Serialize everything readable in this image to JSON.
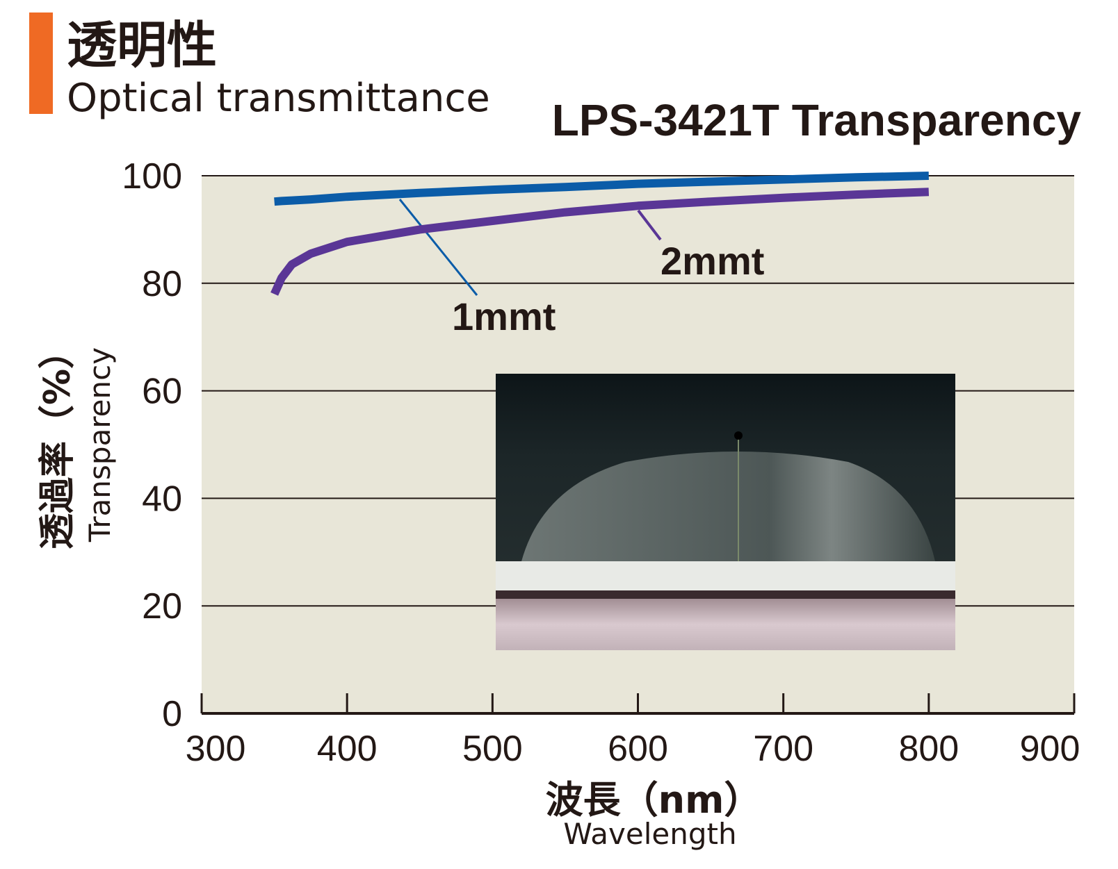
{
  "header": {
    "title": "透明性",
    "subtitle": "Optical transmittance"
  },
  "chart_data": {
    "type": "line",
    "title": "LPS-3421T  Transparency",
    "y_label": "透過率（%）",
    "y_label_en": "Transparency",
    "x_label": "波長（nm）",
    "x_label_en": "Wavelength",
    "x": [
      350,
      355,
      362,
      375,
      400,
      450,
      500,
      550,
      600,
      650,
      700,
      750,
      800
    ],
    "series": [
      {
        "name": "1mmt",
        "color": "#0b5ca8",
        "values": [
          95.2,
          95.3,
          95.4,
          95.6,
          96.1,
          96.8,
          97.4,
          97.9,
          98.5,
          98.9,
          99.3,
          99.7,
          100
        ]
      },
      {
        "name": "2mmt",
        "color": "#5a3696",
        "values": [
          78,
          81,
          83.5,
          85.5,
          87.7,
          90,
          91.6,
          93.2,
          94.4,
          95.2,
          95.9,
          96.5,
          97
        ]
      }
    ],
    "xlim": [
      300,
      900
    ],
    "xticks": [
      300,
      400,
      500,
      600,
      700,
      800,
      900
    ],
    "ylim": [
      0,
      100
    ],
    "yticks": [
      0,
      20,
      40,
      60,
      80,
      100
    ],
    "grid": true
  }
}
